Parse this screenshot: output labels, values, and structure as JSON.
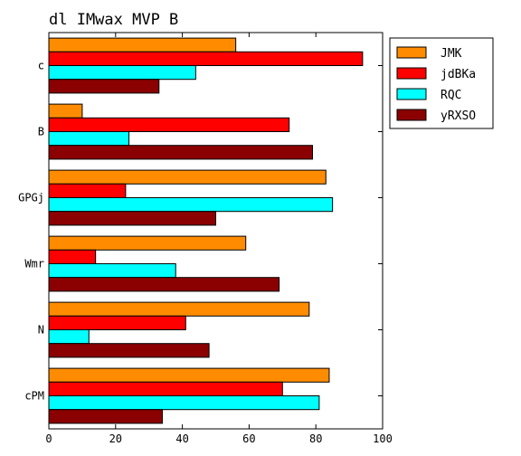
{
  "chart_data": {
    "type": "bar",
    "orientation": "horizontal",
    "title": "dl IMwax MVP B",
    "xlabel": "",
    "ylabel": "",
    "categories": [
      "c",
      "B",
      "GPGj",
      "Wmr",
      "N",
      "cPM"
    ],
    "series": [
      {
        "name": "JMK",
        "color": "#ff8c00",
        "values": [
          56,
          10,
          83,
          59,
          78,
          84
        ]
      },
      {
        "name": "jdBKa",
        "color": "#ff0000",
        "values": [
          94,
          72,
          23,
          14,
          41,
          70
        ]
      },
      {
        "name": "RQC",
        "color": "#00ffff",
        "values": [
          44,
          24,
          85,
          38,
          12,
          81
        ]
      },
      {
        "name": "yRXSO",
        "color": "#8b0000",
        "values": [
          33,
          79,
          50,
          69,
          48,
          34
        ]
      }
    ],
    "xlim": [
      0,
      100
    ],
    "xticks": [
      "0",
      "20",
      "40",
      "60",
      "80",
      "100"
    ],
    "grid": false,
    "legend_position": "top-right"
  }
}
